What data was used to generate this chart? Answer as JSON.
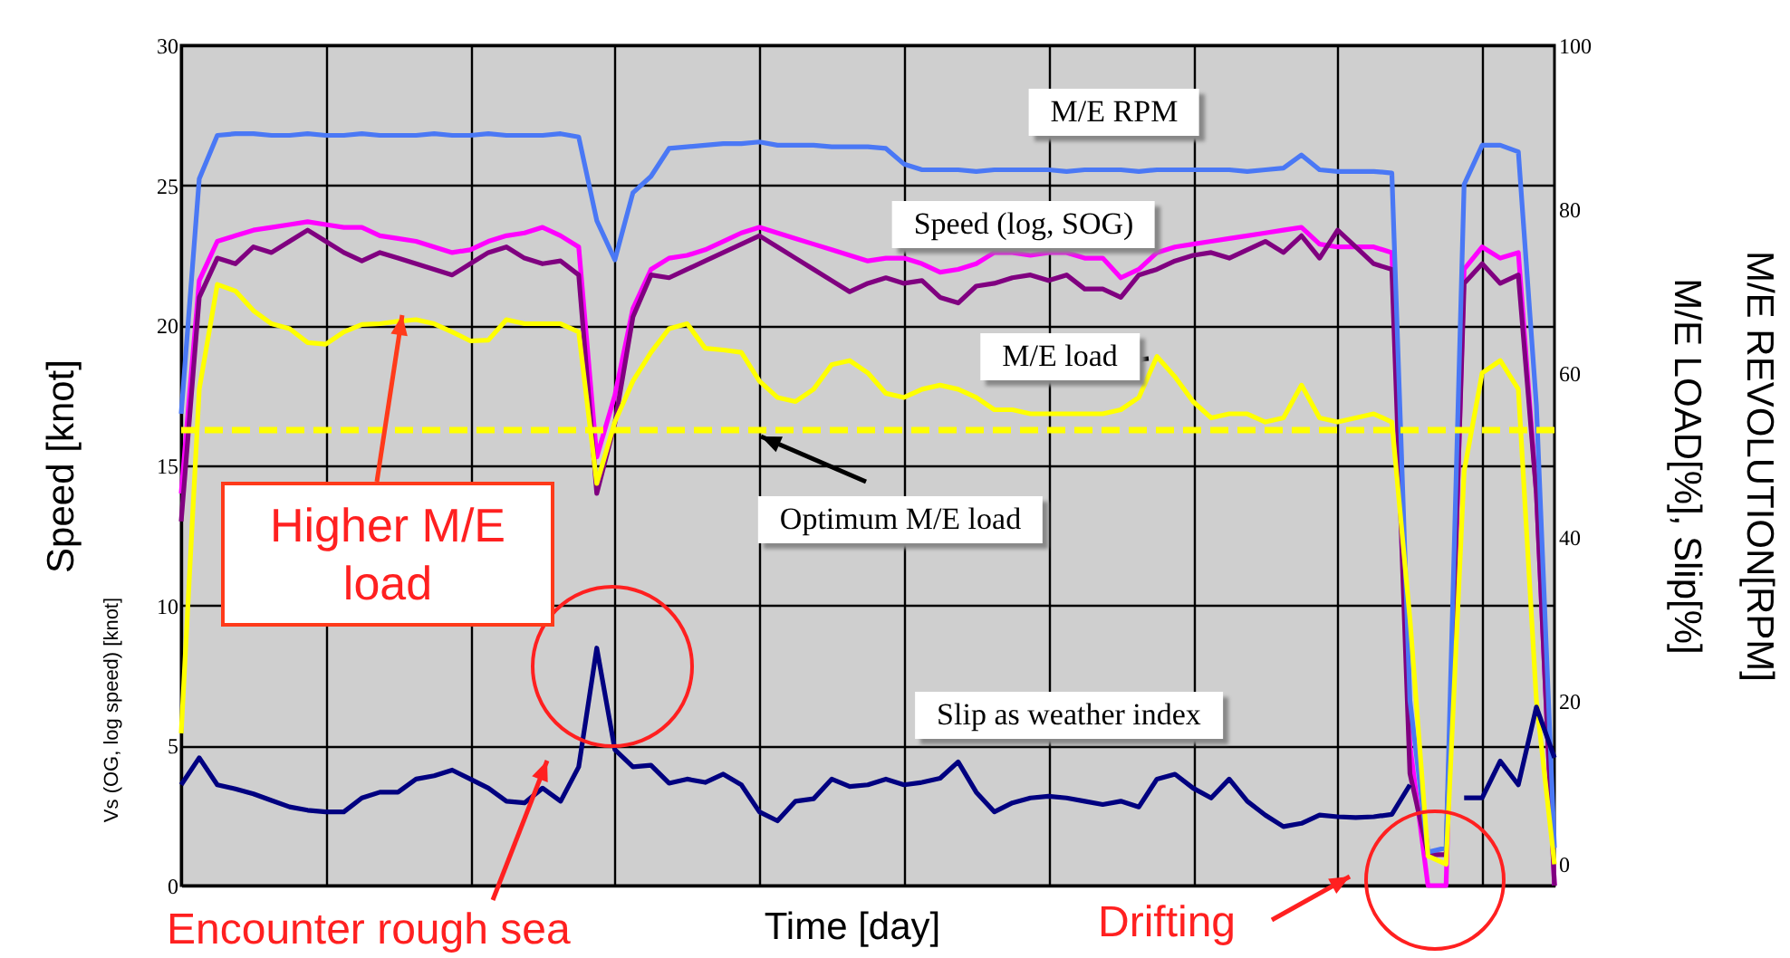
{
  "chart_data": {
    "type": "line",
    "xlabel": "Time [day]",
    "ylabel": "Speed [knot]",
    "y2label": "M/E REVOLUTION[RPM]\nM/E LOAD[%], Slip[%]",
    "categories": [
      null,
      null,
      null,
      null,
      null,
      null,
      null,
      null,
      null,
      null,
      null,
      null,
      null,
      null,
      null,
      null,
      null,
      null,
      null,
      null,
      null,
      null,
      null,
      null,
      null,
      null,
      null,
      null,
      null,
      null,
      null,
      null,
      null,
      null,
      null,
      null,
      null,
      null,
      null,
      null,
      null,
      null,
      null,
      null,
      null,
      null,
      null,
      null,
      null,
      null,
      null,
      null,
      null,
      null,
      null,
      null,
      null,
      null,
      null,
      null,
      null,
      null,
      null,
      null,
      null,
      null,
      null,
      null,
      null,
      null,
      null,
      null,
      null,
      null,
      null,
      null,
      null
    ],
    "series": [
      {
        "name": "Speed (log, SOG)",
        "color": "#ff00ff",
        "values": [
          14,
          21.6,
          23.0,
          23.2,
          23.4,
          23.5,
          23.6,
          23.7,
          23.6,
          23.5,
          23.5,
          23.2,
          23.1,
          23.0,
          22.8,
          22.6,
          22.7,
          23.0,
          23.2,
          23.3,
          23.5,
          23.2,
          22.8,
          15.3,
          17.5,
          20.6,
          22.0,
          22.4,
          22.5,
          22.7,
          23.0,
          23.3,
          23.5,
          23.3,
          23.1,
          22.9,
          22.7,
          22.5,
          22.3,
          22.4,
          22.4,
          22.2,
          21.9,
          22.0,
          22.2,
          22.6,
          22.6,
          22.5,
          22.6,
          22.6,
          22.4,
          22.4,
          21.7,
          22.0,
          22.6,
          22.8,
          22.9,
          23.0,
          23.1,
          23.2,
          23.3,
          23.4,
          23.5,
          22.9,
          22.8,
          22.8,
          22.8,
          22.6,
          5,
          0,
          0,
          22,
          22.8,
          22.4,
          22.6,
          14,
          0
        ]
      },
      {
        "color": "#800080",
        "values": [
          13,
          21.0,
          22.4,
          22.2,
          22.8,
          22.6,
          23.0,
          23.4,
          23.0,
          22.6,
          22.3,
          22.6,
          22.4,
          22.2,
          22.0,
          21.8,
          22.2,
          22.6,
          22.8,
          22.4,
          22.2,
          22.3,
          21.8,
          14,
          16.5,
          20.3,
          21.8,
          21.7,
          22.0,
          22.3,
          22.6,
          22.9,
          23.2,
          22.8,
          22.4,
          22.0,
          21.6,
          21.2,
          21.5,
          21.7,
          21.5,
          21.6,
          21.0,
          20.8,
          21.4,
          21.5,
          21.7,
          21.8,
          21.6,
          21.8,
          21.3,
          21.3,
          21.0,
          21.8,
          22.0,
          22.3,
          22.5,
          22.6,
          22.4,
          22.7,
          23.0,
          22.6,
          23.2,
          22.4,
          23.4,
          22.8,
          22.2,
          22.0,
          4,
          1.1,
          1.1,
          21.5,
          22.2,
          21.5,
          21.8,
          14,
          0
        ]
      },
      {
        "name": "M/E RPM",
        "color": "#4a78f5",
        "axis": "y2",
        "values": [
          55,
          83.7,
          89,
          89.2,
          89.2,
          89,
          89,
          89.2,
          89,
          89,
          89.2,
          89,
          89,
          89,
          89.2,
          89,
          89,
          89.2,
          89,
          89,
          89,
          89.2,
          88.8,
          78.6,
          73.8,
          82,
          84,
          87.4,
          87.6,
          87.8,
          88,
          88,
          88.2,
          87.8,
          87.8,
          87.8,
          87.6,
          87.6,
          87.6,
          87.4,
          85.5,
          84.8,
          84.8,
          84.8,
          84.6,
          84.8,
          84.8,
          84.8,
          84.8,
          84.6,
          84.8,
          84.8,
          84.8,
          84.6,
          84.8,
          84.8,
          84.8,
          84.8,
          84.8,
          84.6,
          84.8,
          85,
          86.6,
          84.8,
          84.6,
          84.6,
          84.6,
          84.4,
          20,
          1.5,
          2,
          83,
          87.8,
          87.8,
          87,
          56,
          2
        ]
      },
      {
        "name": "M/E load",
        "color": "#ffff00",
        "axis": "y2",
        "values": [
          16,
          58,
          70.8,
          70,
          67.6,
          66,
          65.4,
          63.7,
          63.5,
          65,
          65.9,
          66,
          66.3,
          66.5,
          66,
          65,
          63.9,
          64,
          66.5,
          66,
          66,
          66,
          65,
          46.5,
          54,
          59,
          62.5,
          65.4,
          66,
          63,
          62.8,
          62.5,
          59,
          57,
          56.5,
          58,
          61,
          61.5,
          60,
          57.5,
          57,
          58,
          58.5,
          58,
          57,
          55.5,
          55.5,
          55,
          55,
          55,
          55,
          55,
          55.5,
          57,
          62,
          59.5,
          56.5,
          54.5,
          55,
          55,
          54,
          54.5,
          58.5,
          54.5,
          54,
          54.5,
          55,
          54,
          30,
          1,
          0,
          48,
          60,
          61.5,
          58,
          20,
          0
        ]
      },
      {
        "name": "Slip as weather index",
        "color": "#000080",
        "axis": "y2",
        "values": [
          9.7,
          13,
          9.7,
          9.2,
          8.6,
          7.8,
          7.0,
          6.6,
          6.4,
          6.4,
          8.1,
          8.8,
          8.8,
          10.4,
          10.8,
          11.5,
          10.4,
          9.3,
          7.7,
          7.5,
          9.3,
          7.7,
          11.9,
          26.4,
          14,
          11.9,
          12.1,
          9.9,
          10.4,
          10,
          11,
          9.7,
          6.4,
          5.3,
          7.7,
          8,
          10.4,
          9.5,
          9.7,
          10.4,
          9.7,
          10,
          10.5,
          12.5,
          8.8,
          6.4,
          7.5,
          8.1,
          8.3,
          8.1,
          7.7,
          7.3,
          7.7,
          7.0,
          10.4,
          11,
          9.3,
          8.1,
          10.4,
          7.7,
          6.0,
          4.6,
          5.0,
          6.0,
          5.8,
          5.7,
          5.8,
          6.1,
          9.7,
          null,
          null,
          8.1,
          8.1,
          12.6,
          9.7,
          19.2,
          13
        ]
      }
    ],
    "ylim": [
      0,
      30
    ],
    "yticks": [
      0,
      5,
      10,
      15,
      20,
      25,
      30
    ],
    "y2lim": [
      -2.6,
      100
    ],
    "y2ticks": [
      0,
      20,
      40,
      60,
      80,
      100
    ],
    "grid": true,
    "line_style": "solid",
    "ref_lines": [
      {
        "axis": "y2",
        "value": 53,
        "label": "Optimum M/E load",
        "color": "#ffff00",
        "line_style": "dashed"
      }
    ],
    "annotations": [
      "Vs (OG, log speed) [knot]",
      "Higher M/E load",
      "Encounter rough sea",
      "Drifting"
    ]
  }
}
